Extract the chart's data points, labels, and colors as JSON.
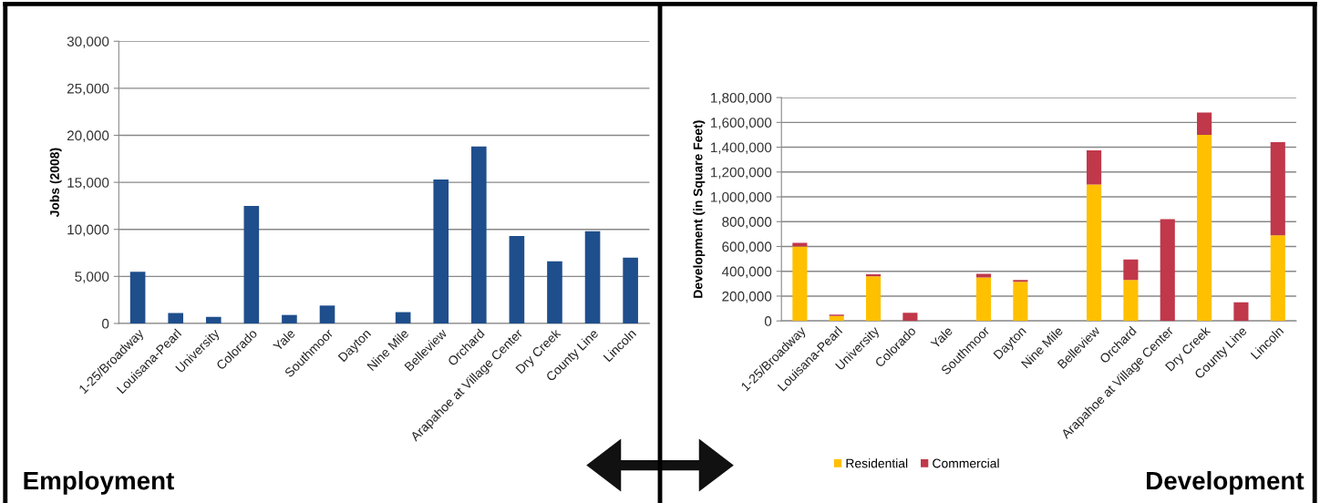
{
  "chart_data": [
    {
      "type": "bar",
      "title": "Employment",
      "ylabel": "Jobs (2008)",
      "categories": [
        "1-25/Broadway",
        "Louisana-Pearl",
        "University",
        "Colorado",
        "Yale",
        "Southmoor",
        "Dayton",
        "Nine Mile",
        "Belleview",
        "Orchard",
        "Arapahoe at Village Center",
        "Dry Creek",
        "County Line",
        "Lincoln"
      ],
      "series": [
        {
          "color": "#1f4e8c",
          "values": [
            5500,
            1100,
            700,
            12500,
            900,
            1900,
            0,
            1200,
            15300,
            18800,
            9300,
            6600,
            9800,
            7000
          ]
        }
      ],
      "ylim": [
        0,
        30000
      ],
      "yticks": [
        {
          "value": 0,
          "label": "0"
        },
        {
          "value": 5000,
          "label": "5,000"
        },
        {
          "value": 10000,
          "label": "10,000"
        },
        {
          "value": 15000,
          "label": "15,000"
        },
        {
          "value": 20000,
          "label": "20,000"
        },
        {
          "value": 25000,
          "label": "25,000"
        },
        {
          "value": 30000,
          "label": "30,000"
        }
      ],
      "grid": "y"
    },
    {
      "type": "bar",
      "title": "Development",
      "ylabel": "Development (in Square Feet)",
      "stacked": true,
      "categories": [
        "1-25/Broadway",
        "Louisana-Pearl",
        "University",
        "Colorado",
        "Yale",
        "Southmoor",
        "Dayton",
        "Nine Mile",
        "Belleview",
        "Orchard",
        "Arapahoe at Village Center",
        "Dry Creek",
        "County Line",
        "Lincoln"
      ],
      "series": [
        {
          "name": "Residential",
          "color": "#ffc000",
          "values": [
            600000,
            40000,
            360000,
            0,
            0,
            350000,
            315000,
            0,
            1100000,
            330000,
            0,
            1500000,
            0,
            690000
          ]
        },
        {
          "name": "Commercial",
          "color": "#c0384a",
          "values": [
            30000,
            10000,
            15000,
            65000,
            0,
            30000,
            15000,
            0,
            275000,
            165000,
            820000,
            180000,
            150000,
            750000
          ]
        }
      ],
      "ylim": [
        0,
        1800000
      ],
      "yticks": [
        {
          "value": 0,
          "label": "0"
        },
        {
          "value": 200000,
          "label": "200,000"
        },
        {
          "value": 400000,
          "label": "400,000"
        },
        {
          "value": 600000,
          "label": "600,000"
        },
        {
          "value": 800000,
          "label": "800,000"
        },
        {
          "value": 1000000,
          "label": "1,000,000"
        },
        {
          "value": 1200000,
          "label": "1,200,000"
        },
        {
          "value": 1400000,
          "label": "1,400,000"
        },
        {
          "value": 1600000,
          "label": "1,600,000"
        },
        {
          "value": 1800000,
          "label": "1,800,000"
        }
      ],
      "grid": "y",
      "legend": "bottom"
    }
  ]
}
